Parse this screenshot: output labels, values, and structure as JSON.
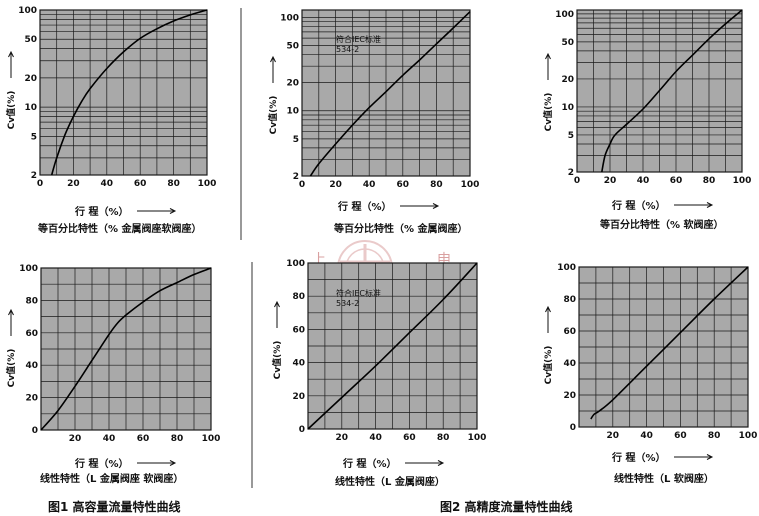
{
  "captions": {
    "fig1": "图1  高容量流量特性曲线",
    "fig2": "图2  高精度流量特性曲线"
  },
  "watermark": {
    "left": "上",
    "right": "申"
  },
  "colors": {
    "plot_bg": "#a9a9a9",
    "grid": "#1a1a1a",
    "curve": "#000000",
    "watermark": "#d9a0a0"
  },
  "chart_data": [
    {
      "id": "c1",
      "type": "line",
      "scale": "log",
      "xlabel": "行  程（%）",
      "ylabel": "Cv值(%)",
      "subtitle": "等百分比特性（% 金属阀座软阀座）",
      "note": [
        "",
        ""
      ],
      "xlim": [
        0,
        100
      ],
      "ylim": [
        2,
        100
      ],
      "xticks": [
        0,
        20,
        40,
        60,
        80,
        100
      ],
      "xticklabels": [
        "0",
        "20",
        "40",
        "60",
        "80",
        "100"
      ],
      "yticks": [
        2,
        5,
        10,
        20,
        50,
        100
      ],
      "yticklabels": [
        "2",
        "5",
        "10",
        "20",
        "50",
        "100"
      ],
      "x": [
        7,
        10,
        15,
        20,
        25,
        30,
        40,
        50,
        60,
        70,
        80,
        90,
        100
      ],
      "y": [
        2,
        3,
        5.2,
        8,
        11.5,
        15.5,
        25,
        37,
        51,
        64,
        77,
        89,
        100
      ]
    },
    {
      "id": "c2",
      "type": "line",
      "scale": "log",
      "xlabel": "行  程（%）",
      "ylabel": "Cv值(%)",
      "subtitle": "等百分比特性（% 金属阀座）",
      "note": [
        "符合IEC标准",
        "534-2"
      ],
      "xlim": [
        0,
        100
      ],
      "ylim": [
        2,
        120
      ],
      "xticks": [
        0,
        20,
        40,
        60,
        80,
        100
      ],
      "xticklabels": [
        "0",
        "20",
        "40",
        "60",
        "80",
        "100"
      ],
      "yticks": [
        2,
        5,
        10,
        20,
        50,
        100
      ],
      "yticklabels": [
        "2",
        "5",
        "10",
        "20",
        "50",
        "100"
      ],
      "x": [
        5,
        10,
        20,
        30,
        40,
        50,
        60,
        70,
        80,
        90,
        100
      ],
      "y": [
        2,
        2.7,
        4.4,
        7,
        10.8,
        16,
        24,
        35,
        52,
        77,
        115
      ]
    },
    {
      "id": "c3",
      "type": "line",
      "scale": "log",
      "xlabel": "行  程（%）",
      "ylabel": "Cv值(%)",
      "subtitle": "等百分比特性（% 软阀座）",
      "note": [
        "",
        ""
      ],
      "xlim": [
        0,
        100
      ],
      "ylim": [
        2,
        110
      ],
      "xticks": [
        0,
        20,
        40,
        60,
        80,
        100
      ],
      "xticklabels": [
        "0",
        "20",
        "40",
        "60",
        "80",
        "100"
      ],
      "yticks": [
        2,
        5,
        10,
        20,
        50,
        100
      ],
      "yticklabels": [
        "2",
        "5",
        "10",
        "20",
        "50",
        "100"
      ],
      "x": [
        15,
        17,
        20,
        23,
        30,
        40,
        50,
        60,
        70,
        80,
        90,
        100
      ],
      "y": [
        2,
        3,
        4,
        5,
        6.5,
        9.5,
        15,
        24,
        36,
        54,
        78,
        110
      ]
    },
    {
      "id": "c4",
      "type": "line",
      "scale": "linear",
      "xlabel": "行  程（%）",
      "ylabel": "Cv值(%)",
      "subtitle": "线性特性（L  金属阀座  软阀座）",
      "note": [
        "",
        ""
      ],
      "xlim": [
        0,
        100
      ],
      "ylim": [
        0,
        100
      ],
      "xticks": [
        0,
        20,
        40,
        60,
        80,
        100
      ],
      "xticklabels": [
        "",
        "20",
        "40",
        "60",
        "80",
        "100"
      ],
      "yticks": [
        0,
        20,
        40,
        60,
        80,
        100
      ],
      "yticklabels": [
        "0",
        "20",
        "40",
        "60",
        "80",
        "100"
      ],
      "x": [
        0,
        10,
        20,
        30,
        40,
        45,
        50,
        60,
        70,
        80,
        90,
        100
      ],
      "y": [
        0,
        12,
        27,
        43,
        59,
        66,
        71,
        79,
        86,
        91,
        96,
        100
      ]
    },
    {
      "id": "c5",
      "type": "line",
      "scale": "linear",
      "xlabel": "行  程（%）",
      "ylabel": "Cv值(%)",
      "subtitle": "线性特性（L  金属阀座）",
      "note": [
        "符合IEC标准",
        "534-2"
      ],
      "xlim": [
        0,
        100
      ],
      "ylim": [
        0,
        100
      ],
      "xticks": [
        0,
        20,
        40,
        60,
        80,
        100
      ],
      "xticklabels": [
        "",
        "20",
        "40",
        "60",
        "80",
        "100"
      ],
      "yticks": [
        0,
        20,
        40,
        60,
        80,
        100
      ],
      "yticklabels": [
        "0",
        "20",
        "40",
        "60",
        "80",
        "100"
      ],
      "x": [
        0,
        20,
        40,
        60,
        80,
        100
      ],
      "y": [
        0,
        19,
        38,
        58,
        78,
        100
      ]
    },
    {
      "id": "c6",
      "type": "line",
      "scale": "linear",
      "xlabel": "行  程（%）",
      "ylabel": "Cv值(%)",
      "subtitle": "线性特性（L 软阀座）",
      "note": [
        "",
        ""
      ],
      "xlim": [
        0,
        100
      ],
      "ylim": [
        0,
        100
      ],
      "xticks": [
        0,
        20,
        40,
        60,
        80,
        100
      ],
      "xticklabels": [
        "",
        "20",
        "40",
        "60",
        "80",
        "100"
      ],
      "yticks": [
        0,
        20,
        40,
        60,
        80,
        100
      ],
      "yticklabels": [
        "0",
        "20",
        "40",
        "60",
        "80",
        "100"
      ],
      "x": [
        7,
        9,
        12,
        20,
        40,
        60,
        80,
        100
      ],
      "y": [
        5,
        8,
        10,
        17,
        38,
        59,
        80,
        100
      ]
    }
  ]
}
